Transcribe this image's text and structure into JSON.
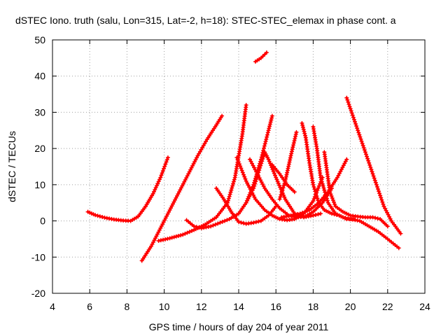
{
  "chart_data": {
    "type": "scatter",
    "title": "dSTEC Iono. truth (salu, Lon=315, Lat=-2, h=18): STEC-STEC_elemax in phase cont. a",
    "xlabel": "GPS time / hours of day 204 of year 2011",
    "ylabel": "dSTEC  / TECUs",
    "xlim": [
      4,
      24
    ],
    "ylim": [
      -20,
      50
    ],
    "x_ticks": [
      4,
      6,
      8,
      10,
      12,
      14,
      16,
      18,
      20,
      22,
      24
    ],
    "y_ticks": [
      -20,
      -10,
      0,
      10,
      20,
      30,
      40,
      50
    ],
    "x_tick_labels": [
      "4",
      "6",
      "8",
      "10",
      "12",
      "14",
      "16",
      "18",
      "20",
      "22",
      "24"
    ],
    "y_tick_labels": [
      "-20",
      "-10",
      "0",
      "10",
      "20",
      "30",
      "40",
      "50"
    ],
    "grid": true,
    "marker": "plus",
    "color": "#ff0000",
    "series": [
      {
        "x": [
          5.9,
          6.3,
          6.8,
          7.3,
          7.8,
          8.2,
          8.6,
          9.0,
          9.4,
          9.8,
          10.2
        ],
        "y": [
          2.5,
          1.6,
          0.9,
          0.4,
          0.1,
          0.0,
          1.2,
          4.0,
          7.5,
          12.0,
          17.5
        ]
      },
      {
        "x": [
          8.8,
          9.3,
          9.8,
          10.3,
          10.8,
          11.3,
          11.8,
          12.3,
          12.8,
          13.1
        ],
        "y": [
          -11,
          -7,
          -2,
          3,
          8,
          13,
          18,
          22.5,
          26.5,
          29
        ]
      },
      {
        "x": [
          9.7,
          10.3,
          11.0,
          11.6,
          12.2,
          12.8,
          13.4,
          13.8,
          14.2,
          14.4
        ],
        "y": [
          -5.5,
          -4.8,
          -3.8,
          -2.5,
          -1.0,
          1.0,
          5.0,
          12,
          24,
          32
        ]
      },
      {
        "x": [
          11.2,
          11.6,
          12.0,
          12.5,
          13.0,
          13.5,
          14.0,
          14.4,
          14.8,
          15.2,
          15.6,
          15.8
        ],
        "y": [
          0.2,
          -1.5,
          -2.0,
          -1.5,
          -0.5,
          0.5,
          2.0,
          5.0,
          10.0,
          17.0,
          25.0,
          29.0
        ]
      },
      {
        "x": [
          12.8,
          13.2,
          13.6,
          14.0,
          14.4,
          14.8,
          15.2,
          15.6,
          16.0
        ],
        "y": [
          9,
          6,
          2.5,
          -0.3,
          -0.8,
          -0.5,
          0.0,
          1.5,
          4.0
        ]
      },
      {
        "x": [
          13.9,
          14.4,
          14.9,
          15.4,
          15.8,
          16.2,
          16.6,
          17.0,
          17.5,
          18.0,
          18.5
        ],
        "y": [
          17.5,
          11,
          6,
          3,
          1.5,
          0.5,
          0.2,
          0.5,
          2.0,
          5.5,
          12
        ]
      },
      {
        "x": [
          14.6,
          15.0,
          15.4,
          15.8,
          16.2,
          16.7,
          17.2,
          17.6,
          18.0,
          18.5,
          19.0
        ],
        "y": [
          17.0,
          13.0,
          9.0,
          6.0,
          3.5,
          1.5,
          1.0,
          1.3,
          2.5,
          5.0,
          9.0
        ]
      },
      {
        "x": [
          14.4,
          14.8,
          15.1,
          15.4,
          15.6,
          16.0,
          16.5,
          17.0,
          17.5,
          18.0,
          18.4
        ],
        "y": [
          5,
          9,
          14,
          19,
          17,
          12,
          6,
          2.0,
          1.0,
          1.5,
          2.0
        ]
      },
      {
        "x": [
          16.3,
          16.8,
          17.3,
          17.8,
          18.3,
          18.8,
          19.3,
          19.8
        ],
        "y": [
          1.0,
          1.5,
          2.0,
          3.0,
          5.0,
          8.0,
          12.0,
          17.0
        ]
      },
      {
        "x": [
          15.8,
          16.2,
          16.6,
          17.0
        ],
        "y": [
          15.5,
          13,
          10,
          8.0
        ]
      },
      {
        "x": [
          17.4,
          17.6,
          17.8,
          18.0,
          18.3,
          18.6,
          19.0,
          19.4,
          19.8,
          20.2
        ],
        "y": [
          27.0,
          23.0,
          16.0,
          10.0,
          5.0,
          3.0,
          2.0,
          1.5,
          0.5,
          0.5
        ]
      },
      {
        "x": [
          16.2,
          16.5,
          16.8,
          17.1
        ],
        "y": [
          6.0,
          11.0,
          18.0,
          24.5
        ]
      },
      {
        "x": [
          18.0,
          18.2,
          18.4,
          18.8,
          19.2,
          19.6,
          20.0,
          20.5,
          21.0,
          21.5,
          22.0,
          22.6
        ],
        "y": [
          26.0,
          20.0,
          12.0,
          5.0,
          2.0,
          1.0,
          0.5,
          0.0,
          -1.5,
          -3.0,
          -5.0,
          -7.5
        ]
      },
      {
        "x": [
          18.6,
          18.9,
          19.2,
          19.6,
          20.0,
          20.4,
          20.8,
          21.2,
          21.6,
          22.0
        ],
        "y": [
          19.0,
          8.0,
          4.0,
          2.5,
          1.5,
          1.2,
          1.0,
          1.0,
          0.5,
          -1.5
        ]
      },
      {
        "x": [
          19.8,
          20.2,
          20.6,
          21.0,
          21.4,
          21.8,
          22.2,
          22.7
        ],
        "y": [
          34.0,
          28.0,
          22.0,
          16.0,
          10.0,
          4.0,
          0.0,
          -3.5
        ]
      },
      {
        "x": [
          14.9,
          15.2,
          15.5
        ],
        "y": [
          44.0,
          45.0,
          46.5
        ]
      }
    ]
  }
}
